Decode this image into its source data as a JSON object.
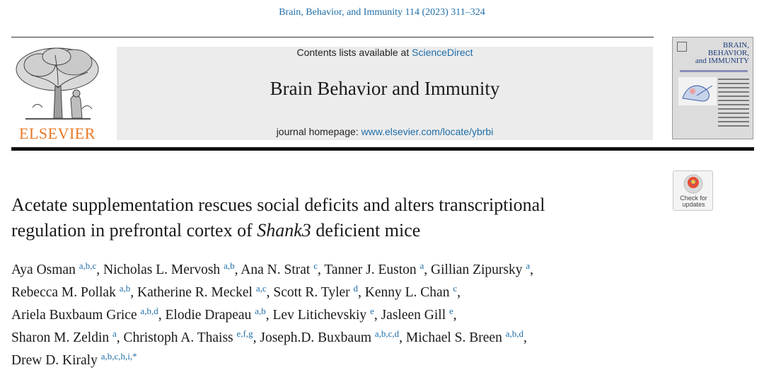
{
  "citation": "Brain, Behavior, and Immunity 114 (2023) 311–324",
  "publisher": {
    "name": "ELSEVIER",
    "logo_icon": "tree-of-knowledge-icon"
  },
  "journal_box": {
    "contents_prefix": "Contents lists available at ",
    "contents_link": "ScienceDirect",
    "title": "Brain Behavior and Immunity",
    "homepage_prefix": "journal homepage: ",
    "homepage_link": "www.elsevier.com/locate/ybrbi"
  },
  "cover": {
    "line1": "BRAIN,",
    "line2": "BEHAVIOR,",
    "line3": "and IMMUNITY"
  },
  "check_for_updates": {
    "line1": "Check for",
    "line2": "updates"
  },
  "article_title": {
    "line1": "Acetate supplementation rescues social deficits and alters transcriptional",
    "line2_before": "regulation in prefrontal cortex of ",
    "line2_italic": "Shank3",
    "line2_after": " deficient mice"
  },
  "authors": [
    {
      "name": "Aya Osman",
      "aff": "a,b,c",
      "sep": ","
    },
    {
      "name": "Nicholas L. Mervosh",
      "aff": "a,b",
      "sep": ","
    },
    {
      "name": "Ana N. Strat",
      "aff": "c",
      "sep": ","
    },
    {
      "name": "Tanner J. Euston",
      "aff": "a",
      "sep": ","
    },
    {
      "name": "Gillian Zipursky",
      "aff": "a",
      "sep": ","
    },
    {
      "name": "Rebecca M. Pollak",
      "aff": "a,b",
      "sep": ","
    },
    {
      "name": "Katherine R. Meckel",
      "aff": "a,c",
      "sep": ","
    },
    {
      "name": "Scott R. Tyler",
      "aff": "d",
      "sep": ","
    },
    {
      "name": "Kenny L. Chan",
      "aff": "c",
      "sep": ","
    },
    {
      "name": "Ariela Buxbaum Grice",
      "aff": "a,b,d",
      "sep": ","
    },
    {
      "name": "Elodie Drapeau",
      "aff": "a,b",
      "sep": ","
    },
    {
      "name": "Lev Litichevskiy",
      "aff": "e",
      "sep": ","
    },
    {
      "name": "Jasleen Gill",
      "aff": "e",
      "sep": ","
    },
    {
      "name": "Sharon M. Zeldin",
      "aff": "a",
      "sep": ","
    },
    {
      "name": "Christoph A. Thaiss",
      "aff": "e,f,g",
      "sep": ","
    },
    {
      "name": "Joseph.D. Buxbaum",
      "aff": "a,b,c,d",
      "sep": ","
    },
    {
      "name": "Michael S. Breen",
      "aff": "a,b,d",
      "sep": ","
    },
    {
      "name": "Drew D. Kiraly",
      "aff": "a,b,c,h,i,*",
      "sep": ""
    }
  ]
}
